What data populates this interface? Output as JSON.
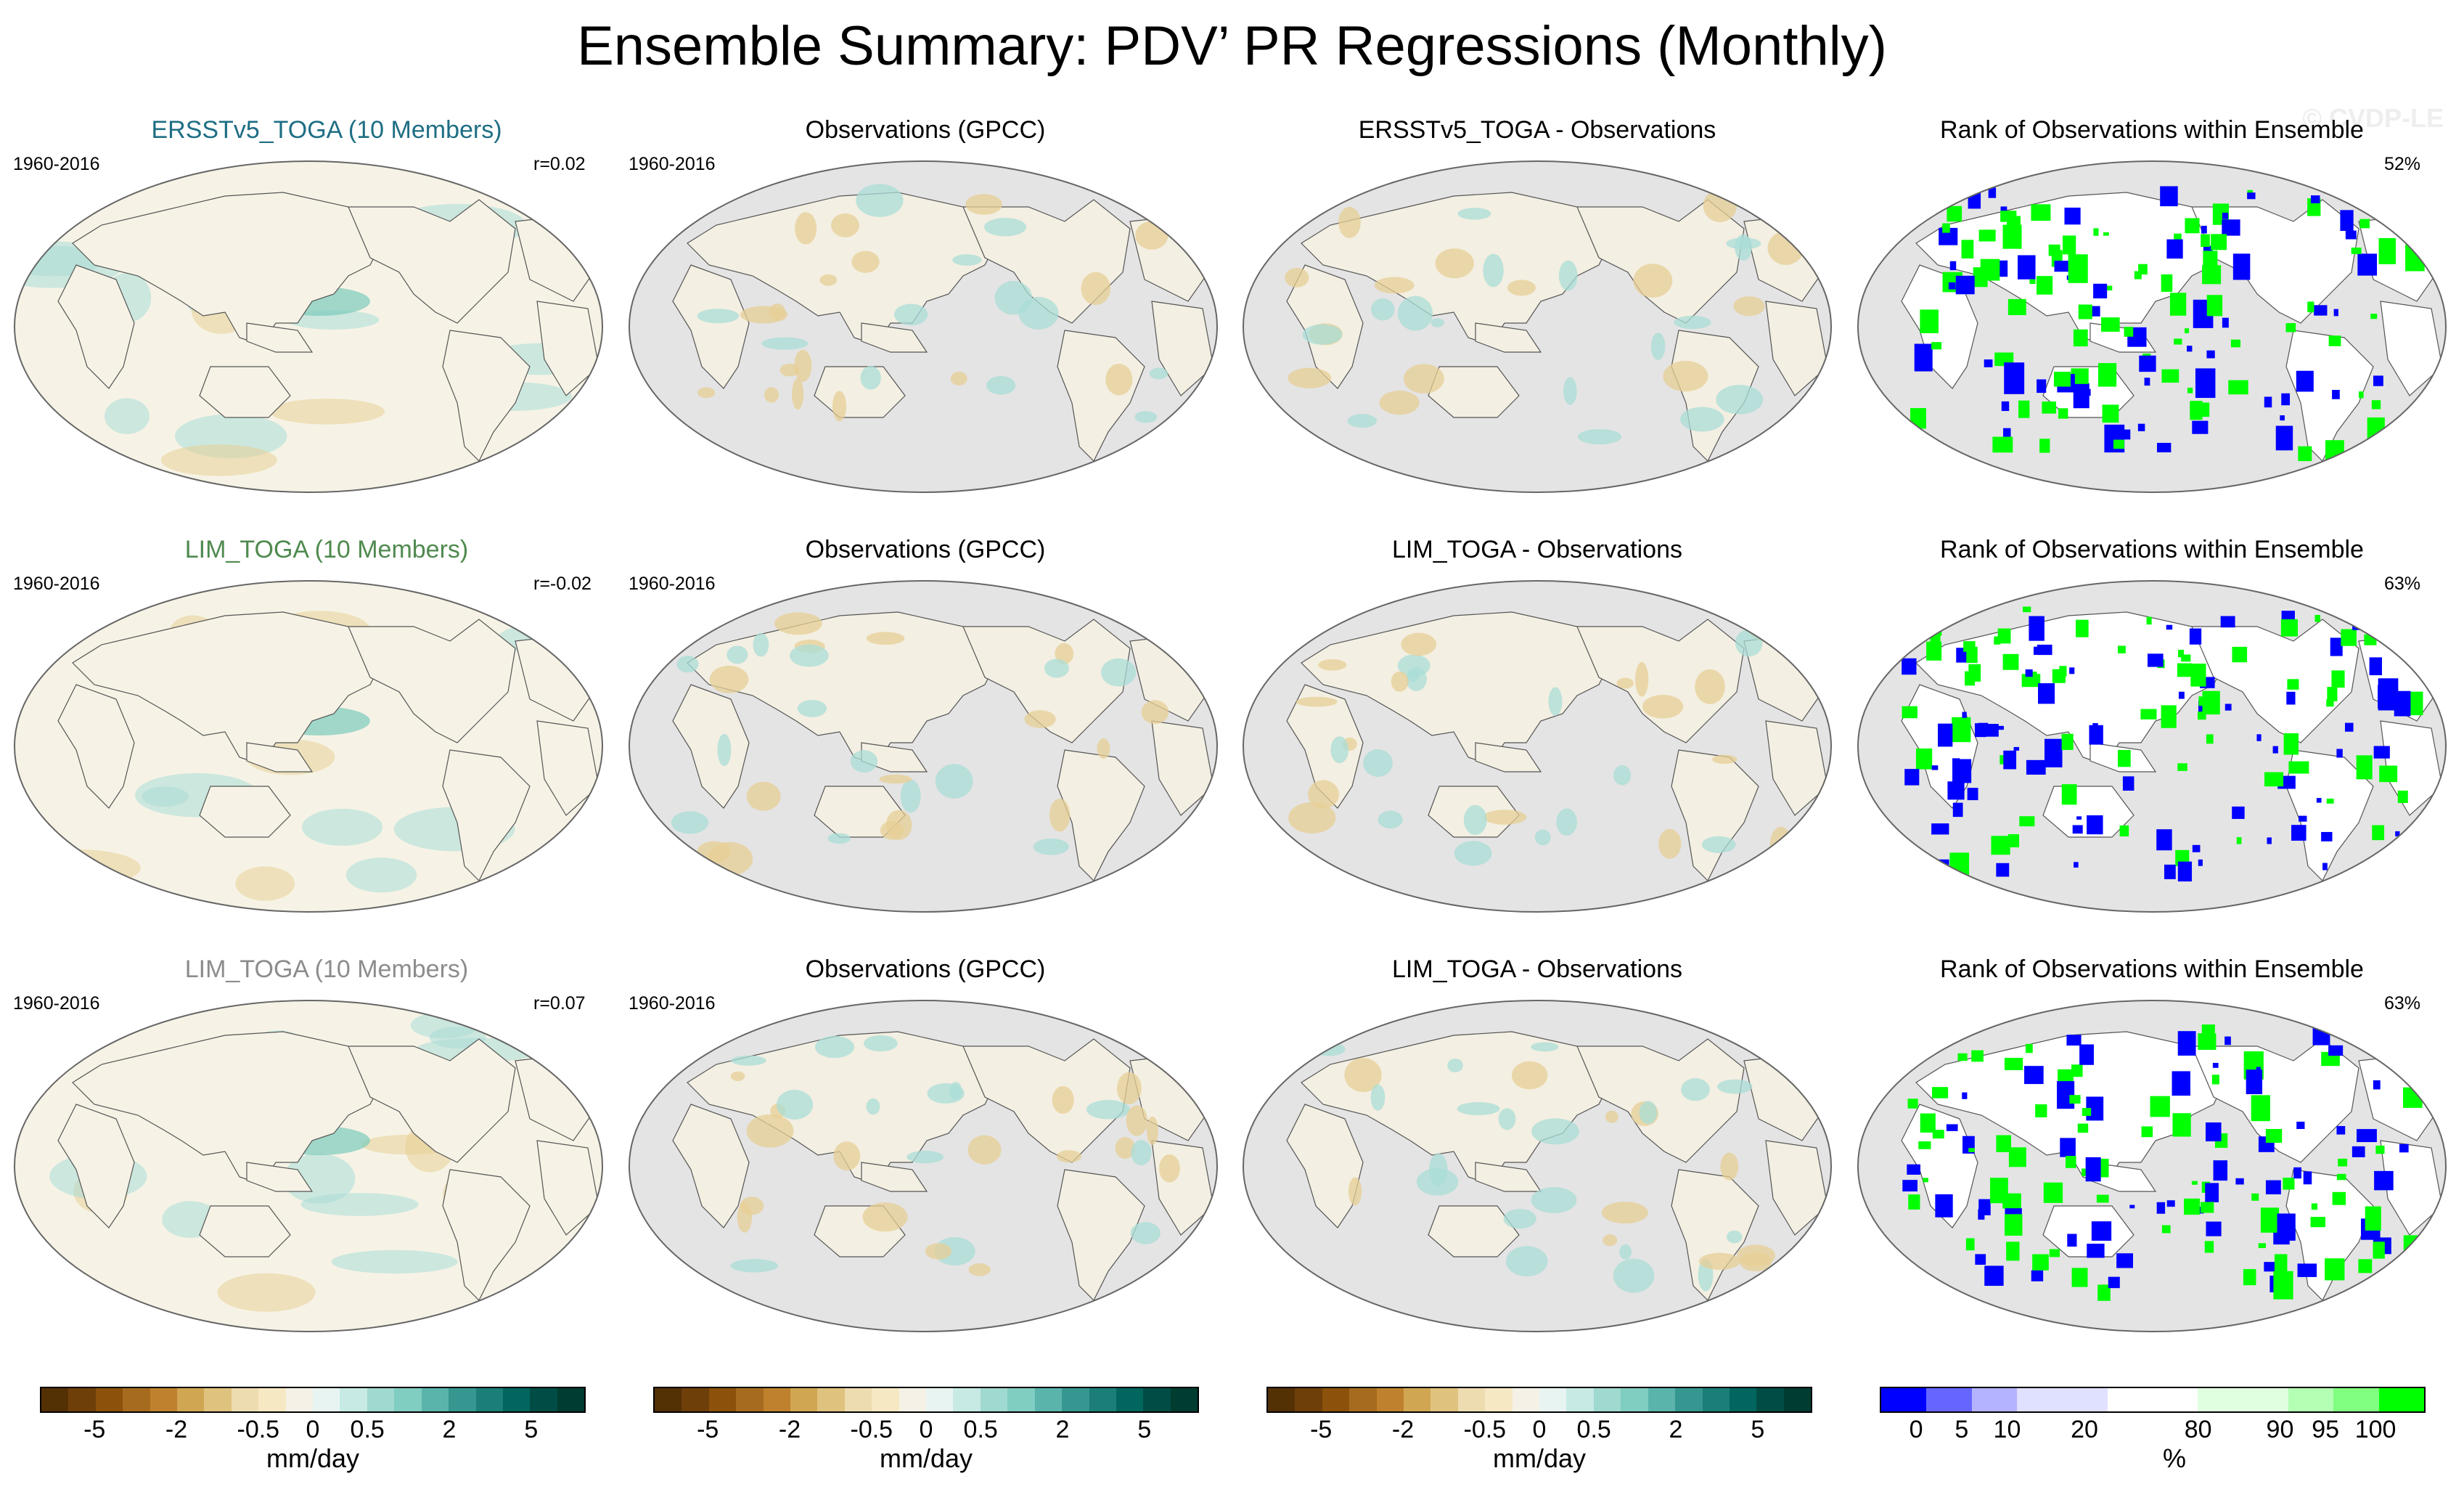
{
  "title": "Ensemble Summary: PDV’ PR Regressions (Monthly)",
  "watermark": "© CVDP-LE",
  "rows": [
    {
      "model": {
        "title": "ERSSTv5_TOGA (10 Members)",
        "title_color": "#1e6e84",
        "period": "1960-2016",
        "r": "r=0.02"
      },
      "obs": {
        "title": "Observations (GPCC)",
        "period": "1960-2016"
      },
      "diff": {
        "title": "ERSSTv5_TOGA - Observations"
      },
      "rank": {
        "title": "Rank of Observations within Ensemble",
        "pct": "52%"
      }
    },
    {
      "model": {
        "title": "LIM_TOGA (10 Members)",
        "title_color": "#4f8a4f",
        "period": "1960-2016",
        "r": "r=-0.02"
      },
      "obs": {
        "title": "Observations (GPCC)",
        "period": "1960-2016"
      },
      "diff": {
        "title": "LIM_TOGA - Observations"
      },
      "rank": {
        "title": "Rank of Observations within Ensemble",
        "pct": "63%"
      }
    },
    {
      "model": {
        "title": "LIM_TOGA (10 Members)",
        "title_color": "#8c8c8c",
        "period": "1960-2016",
        "r": "r=0.07"
      },
      "obs": {
        "title": "Observations (GPCC)",
        "period": "1960-2016"
      },
      "diff": {
        "title": "LIM_TOGA - Observations"
      },
      "rank": {
        "title": "Rank of Observations within Ensemble",
        "pct": "63%"
      }
    }
  ],
  "map_colors": {
    "ocean_model": "#f6f3e6",
    "land_gray": "#e4e4e4",
    "wet": "#a9ddd7",
    "dry": "#e7cf96",
    "rank_high": "#00ff00",
    "rank_low": "#0000ff"
  },
  "brbg_bar": {
    "colors": [
      "#543005",
      "#6f3f0a",
      "#8c510a",
      "#a76b1f",
      "#bf812d",
      "#d1a653",
      "#dfc27d",
      "#eddcb0",
      "#f6e8c3",
      "#f5f1e6",
      "#e8f4f2",
      "#c7eae5",
      "#9fd9cf",
      "#80cdc1",
      "#5ab4ac",
      "#35978f",
      "#1b7f77",
      "#01665e",
      "#014d45",
      "#003c30"
    ],
    "ticks": [
      "-5",
      "-2",
      "-0.5",
      "0",
      "0.5",
      "2",
      "5"
    ],
    "unit": "mm/day"
  },
  "rank_bar": {
    "colors": [
      "#0000ff",
      "#6666ff",
      "#b3b3ff",
      "#e0e0ff",
      "#e0e0ff",
      "#ffffff",
      "#ffffff",
      "#e0ffe0",
      "#e0ffe0",
      "#b3ffb3",
      "#80ff80",
      "#00ff00"
    ],
    "ticks": [
      "0",
      "5",
      "10",
      "20",
      "80",
      "90",
      "95",
      "100"
    ],
    "unit": "%"
  }
}
